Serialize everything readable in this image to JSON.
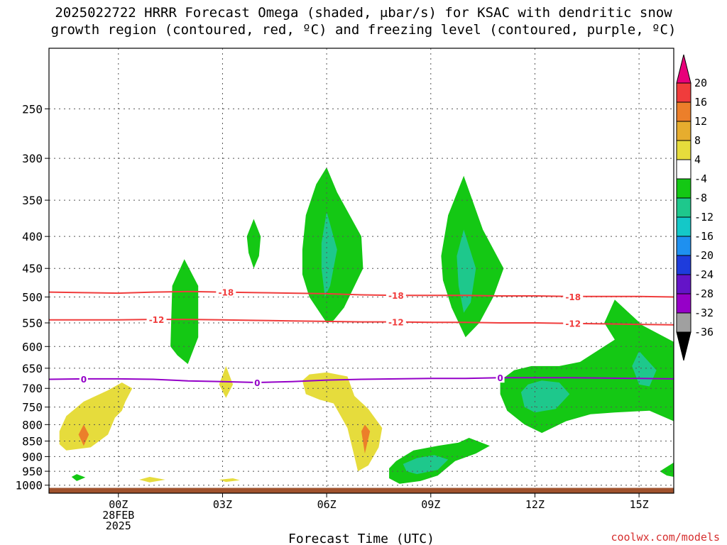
{
  "title": {
    "line1": "2025022722 HRRR Forecast Omega (shaded, μbar/s) for KSAC with dendritic snow",
    "line2": "growth region (contoured, red, ºC) and freezing level (contoured, purple, ºC)"
  },
  "credit": "coolwx.com/models",
  "chart_data": {
    "type": "heatmap",
    "xlabel": "Forecast Time (UTC)",
    "ylabel": "",
    "x_unit": "hours from 2025-02-27 22Z",
    "xlim": [
      -2,
      16
    ],
    "y_scale": "log-pressure (inverted)",
    "ylim": [
      1030,
      200
    ],
    "y_ticks": [
      250,
      300,
      350,
      400,
      450,
      500,
      550,
      600,
      650,
      700,
      750,
      800,
      850,
      900,
      950,
      1000
    ],
    "x_ticks": [
      {
        "x": 0,
        "lines": [
          "00Z",
          "28FEB",
          "2025"
        ]
      },
      {
        "x": 3,
        "lines": [
          "03Z"
        ]
      },
      {
        "x": 6,
        "lines": [
          "06Z"
        ]
      },
      {
        "x": 9,
        "lines": [
          "09Z"
        ]
      },
      {
        "x": 12,
        "lines": [
          "12Z"
        ]
      },
      {
        "x": 15,
        "lines": [
          "15Z"
        ]
      }
    ],
    "grid": true,
    "colorbar": {
      "levels": [
        20,
        16,
        12,
        8,
        4,
        -4,
        -8,
        -12,
        -16,
        -20,
        -24,
        -28,
        -32,
        -36
      ],
      "colors": [
        "#e8007a",
        "#f03c3c",
        "#ec7f2a",
        "#e6ad2e",
        "#e6dc3c",
        "#ffffff",
        "#14c814",
        "#1ec88c",
        "#14c8c8",
        "#1e90f0",
        "#1e3cdc",
        "#6414c8",
        "#9600c8",
        "#a0a0a0",
        "#000000"
      ]
    },
    "omega_regions": [
      {
        "fill": "#e6dc3c",
        "pts": [
          [
            -1.7,
            820
          ],
          [
            -1.5,
            775
          ],
          [
            -1.0,
            735
          ],
          [
            -0.3,
            705
          ],
          [
            0.1,
            685
          ],
          [
            0.4,
            700
          ],
          [
            0.2,
            735
          ],
          [
            0.1,
            760
          ],
          [
            -0.1,
            780
          ],
          [
            -0.3,
            830
          ],
          [
            -0.8,
            870
          ],
          [
            -1.5,
            880
          ],
          [
            -1.7,
            860
          ]
        ]
      },
      {
        "fill": "#ec7f2a",
        "pts": [
          [
            -1.15,
            830
          ],
          [
            -1.0,
            800
          ],
          [
            -0.85,
            830
          ],
          [
            -1.0,
            865
          ]
        ]
      },
      {
        "fill": "#e6dc3c",
        "pts": [
          [
            2.9,
            690
          ],
          [
            3.1,
            645
          ],
          [
            3.3,
            690
          ],
          [
            3.1,
            725
          ]
        ]
      },
      {
        "fill": "#e6dc3c",
        "pts": [
          [
            5.3,
            680
          ],
          [
            5.5,
            665
          ],
          [
            6.0,
            660
          ],
          [
            6.6,
            670
          ],
          [
            6.8,
            720
          ],
          [
            7.2,
            755
          ],
          [
            7.6,
            810
          ],
          [
            7.5,
            870
          ],
          [
            7.2,
            930
          ],
          [
            6.9,
            950
          ],
          [
            6.8,
            900
          ],
          [
            6.6,
            810
          ],
          [
            6.2,
            740
          ],
          [
            5.8,
            730
          ],
          [
            5.4,
            715
          ]
        ]
      },
      {
        "fill": "#ec7f2a",
        "pts": [
          [
            7.0,
            820
          ],
          [
            7.1,
            800
          ],
          [
            7.25,
            820
          ],
          [
            7.1,
            890
          ]
        ]
      },
      {
        "fill": "#e6dc3c",
        "pts": [
          [
            0.6,
            980
          ],
          [
            0.9,
            970
          ],
          [
            1.35,
            980
          ],
          [
            0.9,
            990
          ]
        ]
      },
      {
        "fill": "#e6dc3c",
        "pts": [
          [
            2.9,
            980
          ],
          [
            3.3,
            975
          ],
          [
            3.5,
            982
          ],
          [
            3.1,
            988
          ]
        ]
      },
      {
        "fill": "#14c814",
        "pts": [
          [
            1.5,
            600
          ],
          [
            1.55,
            480
          ],
          [
            1.9,
            435
          ],
          [
            2.3,
            480
          ],
          [
            2.3,
            580
          ],
          [
            2.0,
            640
          ],
          [
            1.7,
            620
          ]
        ]
      },
      {
        "fill": "#14c814",
        "pts": [
          [
            3.7,
            400
          ],
          [
            3.9,
            375
          ],
          [
            4.1,
            400
          ],
          [
            4.05,
            430
          ],
          [
            3.9,
            450
          ],
          [
            3.75,
            425
          ]
        ]
      },
      {
        "fill": "#14c814",
        "pts": [
          [
            5.3,
            420
          ],
          [
            5.4,
            370
          ],
          [
            5.7,
            330
          ],
          [
            6.0,
            310
          ],
          [
            6.3,
            340
          ],
          [
            7.0,
            400
          ],
          [
            7.05,
            450
          ],
          [
            6.5,
            520
          ],
          [
            6.2,
            545
          ],
          [
            6.0,
            550
          ],
          [
            5.5,
            500
          ],
          [
            5.3,
            460
          ]
        ]
      },
      {
        "fill": "#1ec88c",
        "pts": [
          [
            5.85,
            410
          ],
          [
            6.0,
            365
          ],
          [
            6.3,
            420
          ],
          [
            6.1,
            480
          ],
          [
            5.95,
            500
          ],
          [
            5.85,
            450
          ]
        ]
      },
      {
        "fill": "#14c814",
        "pts": [
          [
            9.3,
            430
          ],
          [
            9.5,
            370
          ],
          [
            9.95,
            320
          ],
          [
            10.5,
            390
          ],
          [
            11.1,
            450
          ],
          [
            10.8,
            500
          ],
          [
            10.4,
            550
          ],
          [
            10.0,
            580
          ],
          [
            9.6,
            520
          ],
          [
            9.35,
            470
          ]
        ]
      },
      {
        "fill": "#1ec88c",
        "pts": [
          [
            9.75,
            430
          ],
          [
            9.95,
            390
          ],
          [
            10.3,
            450
          ],
          [
            10.15,
            510
          ],
          [
            9.95,
            530
          ],
          [
            9.8,
            480
          ]
        ]
      },
      {
        "fill": "#14c814",
        "pts": [
          [
            7.8,
            940
          ],
          [
            8.0,
            915
          ],
          [
            8.5,
            880
          ],
          [
            9.2,
            865
          ],
          [
            9.8,
            855
          ],
          [
            10.1,
            840
          ],
          [
            10.7,
            865
          ],
          [
            10.3,
            890
          ],
          [
            9.7,
            915
          ],
          [
            9.2,
            965
          ],
          [
            8.7,
            985
          ],
          [
            8.1,
            995
          ],
          [
            7.8,
            975
          ]
        ]
      },
      {
        "fill": "#1ec88c",
        "pts": [
          [
            8.2,
            925
          ],
          [
            8.6,
            905
          ],
          [
            9.1,
            895
          ],
          [
            9.5,
            910
          ],
          [
            9.2,
            945
          ],
          [
            8.6,
            960
          ],
          [
            8.3,
            950
          ]
        ]
      },
      {
        "fill": "#14c814",
        "pts": [
          [
            11.0,
            680
          ],
          [
            11.4,
            655
          ],
          [
            11.9,
            645
          ],
          [
            12.7,
            645
          ],
          [
            13.3,
            635
          ],
          [
            14.3,
            585
          ],
          [
            14.0,
            550
          ],
          [
            14.3,
            505
          ],
          [
            15.1,
            555
          ],
          [
            16.0,
            590
          ],
          [
            16.0,
            790
          ],
          [
            15.3,
            760
          ],
          [
            14.3,
            765
          ],
          [
            13.6,
            770
          ],
          [
            12.9,
            790
          ],
          [
            12.2,
            825
          ],
          [
            11.7,
            800
          ],
          [
            11.2,
            760
          ],
          [
            11.0,
            715
          ]
        ]
      },
      {
        "fill": "#1ec88c",
        "pts": [
          [
            11.6,
            710
          ],
          [
            11.8,
            690
          ],
          [
            12.2,
            680
          ],
          [
            12.7,
            685
          ],
          [
            13.0,
            715
          ],
          [
            12.6,
            755
          ],
          [
            12.0,
            765
          ],
          [
            11.7,
            750
          ]
        ]
      },
      {
        "fill": "#1ec88c",
        "pts": [
          [
            14.8,
            645
          ],
          [
            15.0,
            610
          ],
          [
            15.5,
            655
          ],
          [
            15.3,
            695
          ],
          [
            15.0,
            690
          ]
        ]
      },
      {
        "fill": "#14c814",
        "pts": [
          [
            15.6,
            950
          ],
          [
            16.0,
            920
          ],
          [
            16.0,
            970
          ],
          [
            15.8,
            965
          ]
        ]
      },
      {
        "fill": "#14c814",
        "pts": [
          [
            -1.35,
            970
          ],
          [
            -1.2,
            960
          ],
          [
            -0.95,
            972
          ],
          [
            -1.2,
            985
          ]
        ]
      }
    ],
    "contours": [
      {
        "name": "-18 °C",
        "color": "#f03c3c",
        "label": "-18",
        "pts": [
          [
            -2,
            491
          ],
          [
            -1,
            492
          ],
          [
            0,
            493
          ],
          [
            1,
            491
          ],
          [
            2,
            490
          ],
          [
            3,
            491
          ],
          [
            4,
            492
          ],
          [
            5,
            493
          ],
          [
            6,
            494
          ],
          [
            7,
            496
          ],
          [
            8,
            497
          ],
          [
            9,
            497
          ],
          [
            10,
            497
          ],
          [
            11,
            498
          ],
          [
            12,
            498
          ],
          [
            13,
            499
          ],
          [
            14,
            499
          ],
          [
            15,
            499
          ],
          [
            16,
            500
          ]
        ],
        "labels_at": [
          [
            3.1,
            491
          ],
          [
            8.0,
            497
          ],
          [
            13.1,
            499
          ]
        ]
      },
      {
        "name": "-12 °C",
        "color": "#f03c3c",
        "label": "-12",
        "pts": [
          [
            -2,
            544
          ],
          [
            -1,
            544
          ],
          [
            0,
            544
          ],
          [
            1,
            543
          ],
          [
            2,
            543
          ],
          [
            3,
            544
          ],
          [
            4,
            545
          ],
          [
            5,
            546
          ],
          [
            6,
            547
          ],
          [
            7,
            548
          ],
          [
            8,
            548
          ],
          [
            9,
            549
          ],
          [
            10,
            549
          ],
          [
            11,
            550
          ],
          [
            12,
            550
          ],
          [
            13,
            551
          ],
          [
            14,
            552
          ],
          [
            15,
            553
          ],
          [
            16,
            554
          ]
        ],
        "labels_at": [
          [
            1.1,
            543
          ],
          [
            8.0,
            548
          ],
          [
            13.1,
            551
          ]
        ]
      },
      {
        "name": "0 °C freezing level",
        "color": "#9400c8",
        "label": "0",
        "pts": [
          [
            -2,
            677
          ],
          [
            -1,
            676
          ],
          [
            0,
            676
          ],
          [
            1,
            677
          ],
          [
            2,
            681
          ],
          [
            3,
            683
          ],
          [
            4,
            685
          ],
          [
            5,
            683
          ],
          [
            6,
            679
          ],
          [
            7,
            677
          ],
          [
            8,
            676
          ],
          [
            9,
            675
          ],
          [
            10,
            675
          ],
          [
            11,
            673
          ],
          [
            12,
            673
          ],
          [
            13,
            673
          ],
          [
            14,
            674
          ],
          [
            15,
            675
          ],
          [
            16,
            676
          ]
        ],
        "labels_at": [
          [
            -1.0,
            676
          ],
          [
            4.0,
            685
          ],
          [
            11.0,
            673
          ]
        ]
      }
    ],
    "terrain_color": "#a0522d"
  }
}
